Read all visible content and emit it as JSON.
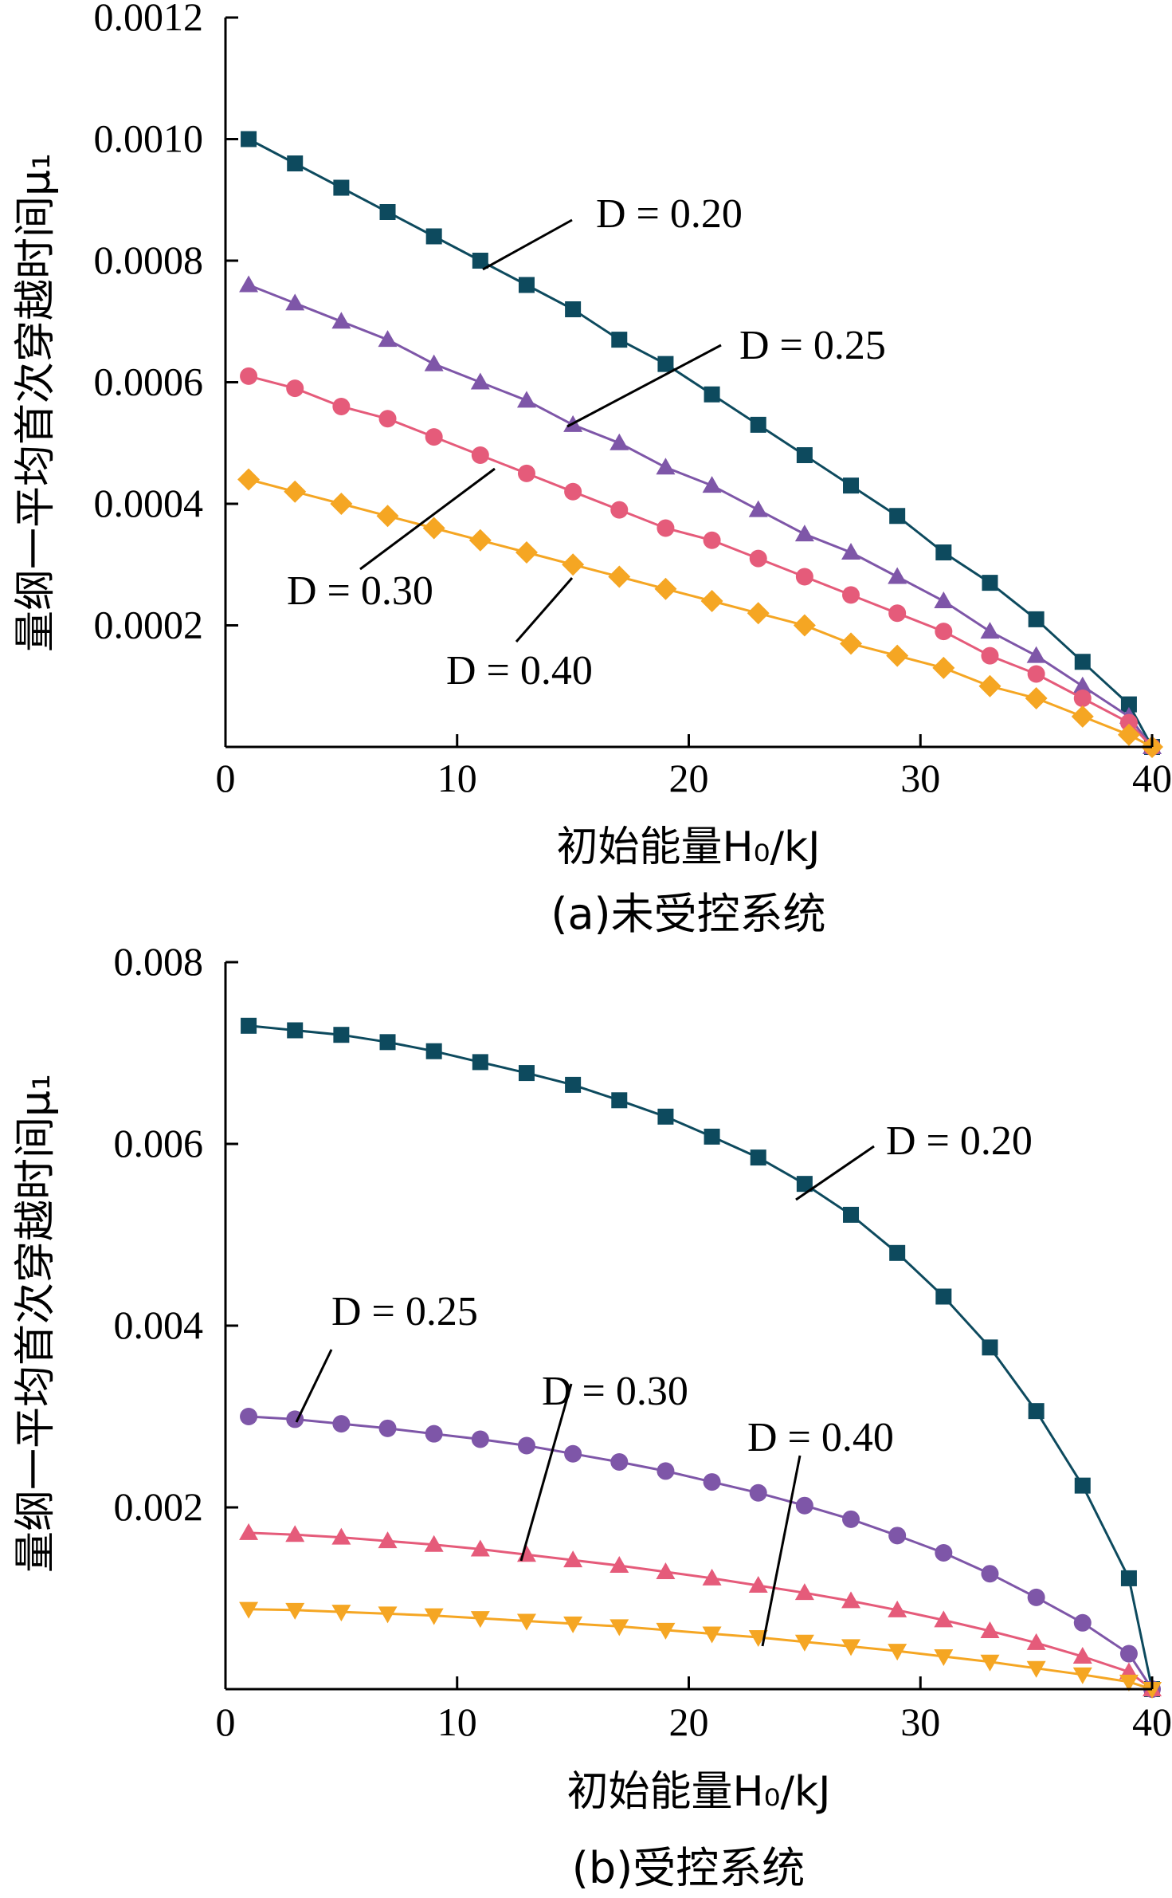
{
  "chart_data": [
    {
      "type": "line",
      "panel": "a",
      "caption": "(a)未受控系统",
      "xlabel": "初始能量H₀/kJ",
      "ylabel": "量纲一平均首次穿越时间μ₁",
      "xlim": [
        0,
        40
      ],
      "ylim": [
        0,
        0.0012
      ],
      "xticks": [
        "0",
        "10",
        "20",
        "30",
        "40"
      ],
      "yticks": [
        "0.0002",
        "0.0004",
        "0.0006",
        "0.0008",
        "0.0010",
        "0.0012"
      ],
      "x": [
        1,
        3,
        5,
        7,
        9,
        11,
        13,
        15,
        17,
        19,
        21,
        23,
        25,
        27,
        29,
        31,
        33,
        35,
        37,
        39,
        40
      ],
      "series": [
        {
          "name": "D = 0.20",
          "marker": "square",
          "color": "#0d4a5e",
          "values": [
            0.001,
            0.00096,
            0.00092,
            0.00088,
            0.00084,
            0.0008,
            0.00076,
            0.00072,
            0.00067,
            0.00063,
            0.00058,
            0.00053,
            0.00048,
            0.00043,
            0.00038,
            0.00032,
            0.00027,
            0.00021,
            0.00014,
            7e-05,
            0.0
          ]
        },
        {
          "name": "D = 0.25",
          "marker": "triangle",
          "color": "#7e56a8",
          "values": [
            0.00076,
            0.00073,
            0.0007,
            0.00067,
            0.00063,
            0.0006,
            0.00057,
            0.00053,
            0.0005,
            0.00046,
            0.00043,
            0.00039,
            0.00035,
            0.00032,
            0.00028,
            0.00024,
            0.00019,
            0.00015,
            0.0001,
            5e-05,
            0.0
          ]
        },
        {
          "name": "D = 0.30",
          "marker": "circle",
          "color": "#e55b7a",
          "values": [
            0.00061,
            0.00059,
            0.00056,
            0.00054,
            0.00051,
            0.00048,
            0.00045,
            0.00042,
            0.00039,
            0.00036,
            0.00034,
            0.00031,
            0.00028,
            0.00025,
            0.00022,
            0.00019,
            0.00015,
            0.00012,
            8e-05,
            4e-05,
            0.0
          ]
        },
        {
          "name": "D = 0.40",
          "marker": "diamond",
          "color": "#f5a623",
          "values": [
            0.00044,
            0.00042,
            0.0004,
            0.00038,
            0.00036,
            0.00034,
            0.00032,
            0.0003,
            0.00028,
            0.00026,
            0.00024,
            0.00022,
            0.0002,
            0.00017,
            0.00015,
            0.00013,
            0.0001,
            8e-05,
            5e-05,
            2e-05,
            0.0
          ]
        }
      ],
      "annotations": [
        "D = 0.20",
        "D = 0.25",
        "D = 0.30",
        "D = 0.40"
      ]
    },
    {
      "type": "line",
      "panel": "b",
      "caption": "(b)受控系统",
      "xlabel": "初始能量H₀/kJ",
      "ylabel": "量纲一平均首次穿越时间μ₁",
      "xlim": [
        0,
        40
      ],
      "ylim": [
        0,
        0.008
      ],
      "xticks": [
        "0",
        "10",
        "20",
        "30",
        "40"
      ],
      "yticks": [
        "0.002",
        "0.004",
        "0.006",
        "0.008"
      ],
      "x": [
        1,
        3,
        5,
        7,
        9,
        11,
        13,
        15,
        17,
        19,
        21,
        23,
        25,
        27,
        29,
        31,
        33,
        35,
        37,
        39,
        40
      ],
      "series": [
        {
          "name": "D = 0.20",
          "marker": "square",
          "color": "#0d4a5e",
          "values": [
            0.0073,
            0.00725,
            0.0072,
            0.00712,
            0.00702,
            0.0069,
            0.00678,
            0.00665,
            0.00648,
            0.0063,
            0.00608,
            0.00585,
            0.00556,
            0.00522,
            0.0048,
            0.00432,
            0.00376,
            0.00306,
            0.00224,
            0.00122,
            0.0
          ]
        },
        {
          "name": "D = 0.25",
          "marker": "circle",
          "color": "#7e56a8",
          "values": [
            0.003,
            0.00297,
            0.00292,
            0.00287,
            0.00281,
            0.00275,
            0.00268,
            0.00259,
            0.0025,
            0.0024,
            0.00228,
            0.00216,
            0.00202,
            0.00187,
            0.00169,
            0.0015,
            0.00127,
            0.00101,
            0.00073,
            0.00039,
            0.0
          ]
        },
        {
          "name": "D = 0.30",
          "marker": "triangle",
          "color": "#e55b7a",
          "values": [
            0.00172,
            0.0017,
            0.00167,
            0.00163,
            0.00159,
            0.00154,
            0.00148,
            0.00142,
            0.00136,
            0.00129,
            0.00122,
            0.00114,
            0.00106,
            0.00097,
            0.00087,
            0.00076,
            0.00064,
            0.00051,
            0.00036,
            0.00019,
            0.0
          ]
        },
        {
          "name": "D = 0.40",
          "marker": "triangle-down",
          "color": "#f5a623",
          "values": [
            0.00088,
            0.00087,
            0.00085,
            0.00083,
            0.00081,
            0.00078,
            0.00075,
            0.00072,
            0.00069,
            0.00065,
            0.00061,
            0.00057,
            0.00052,
            0.00047,
            0.00042,
            0.00036,
            0.0003,
            0.00023,
            0.00016,
            8e-05,
            0.0
          ]
        }
      ],
      "annotations": [
        "D = 0.20",
        "D = 0.25",
        "D = 0.30",
        "D = 0.40"
      ]
    }
  ]
}
